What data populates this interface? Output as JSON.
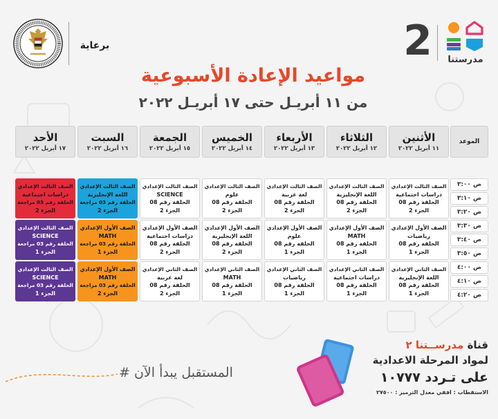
{
  "header": {
    "sponsor_label": "برعاية",
    "channel_number": "2",
    "logo_text": "مدرستنا"
  },
  "title": "مواعيد الإعادة الأسبوعية",
  "subtitle": "من ١١ أبريـل حتى ١٧ أبريـل ٢٠٢٢",
  "schedule": {
    "time_header": "الموعد",
    "days": [
      {
        "name": "الأثنين",
        "date": "١١ أبريل ٢٠٢٢"
      },
      {
        "name": "الثلاثاء",
        "date": "١٢ أبريل ٢٠٢٢"
      },
      {
        "name": "الأربعاء",
        "date": "١٣ أبريل ٢٠٢٢"
      },
      {
        "name": "الخميس",
        "date": "١٤ أبريل ٢٠٢٢"
      },
      {
        "name": "الجمعة",
        "date": "١٥ أبريل ٢٠٢٢"
      },
      {
        "name": "السبت",
        "date": "١٦ أبريل ٢٠٢٢"
      },
      {
        "name": "الأحد",
        "date": "١٧ أبريل ٢٠٢٢"
      }
    ],
    "times": [
      "٣:٠٠ ص",
      "٣:١٠ ص",
      "٣:٢٠ ص",
      "٣:٣٠ ص",
      "٣:٤٠ ص",
      "٣:٥٠ ص",
      "٤:٠٠ ص",
      "٤:١٠ ص",
      "٤:٢٠ ص"
    ],
    "slots": [
      {
        "cells": [
          {
            "lines": [
              "الصف الثالث الإعدادي",
              "دراسات اجتماعية",
              "الحلقة رقم 08",
              "الجزء 2"
            ],
            "bg": "#ffffff",
            "fg": "#222222"
          },
          {
            "lines": [
              "الصف الثالث الإعدادي",
              "اللغة الإنجليزية",
              "الحلقة رقم 08",
              "الجزء 2"
            ],
            "bg": "#ffffff",
            "fg": "#222222"
          },
          {
            "lines": [
              "الصف الثالث الإعدادي",
              "لغة عربية",
              "الحلقة رقم 08",
              "الجزء 2"
            ],
            "bg": "#ffffff",
            "fg": "#222222"
          },
          {
            "lines": [
              "الصف الثالث الإعدادي",
              "علوم",
              "الحلقة رقم 08",
              "الجزء 2"
            ],
            "bg": "#ffffff",
            "fg": "#222222"
          },
          {
            "lines": [
              "الصف الثالث الإعدادي",
              "SCIENCE",
              "الحلقة رقم 08",
              "الجزء 2"
            ],
            "bg": "#ffffff",
            "fg": "#222222"
          },
          {
            "lines": [
              "الصف الثالث الإعدادي",
              "اللغة الإنجليزية",
              "الحلقة رقم 03 مراجعة",
              "الجزء 2"
            ],
            "bg": "#1ca3dd",
            "fg": "#1a1a1a"
          },
          {
            "lines": [
              "الصف الثالث الإعدادي",
              "دراسات اجتماعية",
              "الحلقة رقم 03 مراجعة",
              "الجزء 2"
            ],
            "bg": "#e52a3a",
            "fg": "#1a1a1a"
          }
        ]
      },
      {
        "cells": [
          {
            "lines": [
              "الصف الأول الإعدادي",
              "رياضيات",
              "الحلقة رقم 08",
              "الجزء 1"
            ],
            "bg": "#ffffff",
            "fg": "#222222"
          },
          {
            "lines": [
              "الصف الأول الإعدادي",
              "MATH",
              "الحلقة رقم 08",
              "الجزء 1"
            ],
            "bg": "#ffffff",
            "fg": "#222222"
          },
          {
            "lines": [
              "الصف الأول الإعدادي",
              "علوم",
              "الحلقة رقم 08",
              "الجزء 1"
            ],
            "bg": "#ffffff",
            "fg": "#222222"
          },
          {
            "lines": [
              "الصف الأول الإعدادي",
              "اللغة الإنجليزية",
              "الحلقة رقم 08",
              "الجزء 2"
            ],
            "bg": "#ffffff",
            "fg": "#222222"
          },
          {
            "lines": [
              "الصف الأول الإعدادي",
              "دراسات اجتماعية",
              "الحلقة رقم 08",
              "الجزء 2"
            ],
            "bg": "#ffffff",
            "fg": "#222222"
          },
          {
            "lines": [
              "الصف الأول الإعدادي",
              "MATH",
              "الحلقة رقم 03 مراجعة",
              "الجزء 1"
            ],
            "bg": "#f7941d",
            "fg": "#1a1a1a"
          },
          {
            "lines": [
              "الصف الثالث الإعدادي",
              "SCIENCE",
              "الحلقة رقم 03 مراجعة",
              "الجزء 1"
            ],
            "bg": "#5c3794",
            "fg": "#ffffff"
          }
        ]
      },
      {
        "cells": [
          {
            "lines": [
              "الصف الثاني الإعدادي",
              "اللغة الإنجليزية",
              "الحلقة رقم 08",
              "الجزء 1"
            ],
            "bg": "#ffffff",
            "fg": "#222222"
          },
          {
            "lines": [
              "الصف الثاني الإعدادي",
              "دراسات اجتماعية",
              "الحلقة رقم 08",
              "الجزء 1"
            ],
            "bg": "#ffffff",
            "fg": "#222222"
          },
          {
            "lines": [
              "الصف الثاني الإعدادي",
              "رياضيات",
              "الحلقة رقم 08",
              "الجزء 1"
            ],
            "bg": "#ffffff",
            "fg": "#222222"
          },
          {
            "lines": [
              "الصف الثاني الإعدادي",
              "MATH",
              "الحلقة رقم 08",
              "الجزء 1"
            ],
            "bg": "#ffffff",
            "fg": "#222222"
          },
          {
            "lines": [
              "الصف الثاني الإعدادي",
              "لغة عربية",
              "الحلقة رقم 08",
              "الجزء 2"
            ],
            "bg": "#ffffff",
            "fg": "#222222"
          },
          {
            "lines": [
              "الصف الأول الإعدادي",
              "MATH",
              "الحلقة رقم 03 مراجعة",
              "الجزء 2"
            ],
            "bg": "#f7941d",
            "fg": "#1a1a1a"
          },
          {
            "lines": [
              "الصف الثالث الإعدادي",
              "SCIENCE",
              "الحلقة رقم 03 مراجعة",
              "الجزء 1"
            ],
            "bg": "#5c3794",
            "fg": "#ffffff"
          }
        ]
      }
    ]
  },
  "footer": {
    "hashtag": "# المستقبل يبدأ الآن",
    "channel_prefix": "قناة",
    "channel_name": "مدرســتنا ٢",
    "subjects_line": "لمواد المرحلة الاعدادية",
    "frequency_line": "على تـردد ١٠٧٧٧",
    "tech_line": "الاستقطاب : افقي معدل الترميز : ٢٧٥٠٠"
  },
  "colors": {
    "title_accent": "#e5482b",
    "channel_accent": "#e8452f",
    "header_bg": "#e4e4e4",
    "logo_orange": "#f7941d",
    "logo_pink": "#e8336e",
    "logo_green": "#3fb54a",
    "logo_purple": "#6a3d99",
    "logo_blue": "#1aa0dc",
    "tablet_pink": "#cf3589",
    "tablet_blue": "#3a93e0"
  }
}
